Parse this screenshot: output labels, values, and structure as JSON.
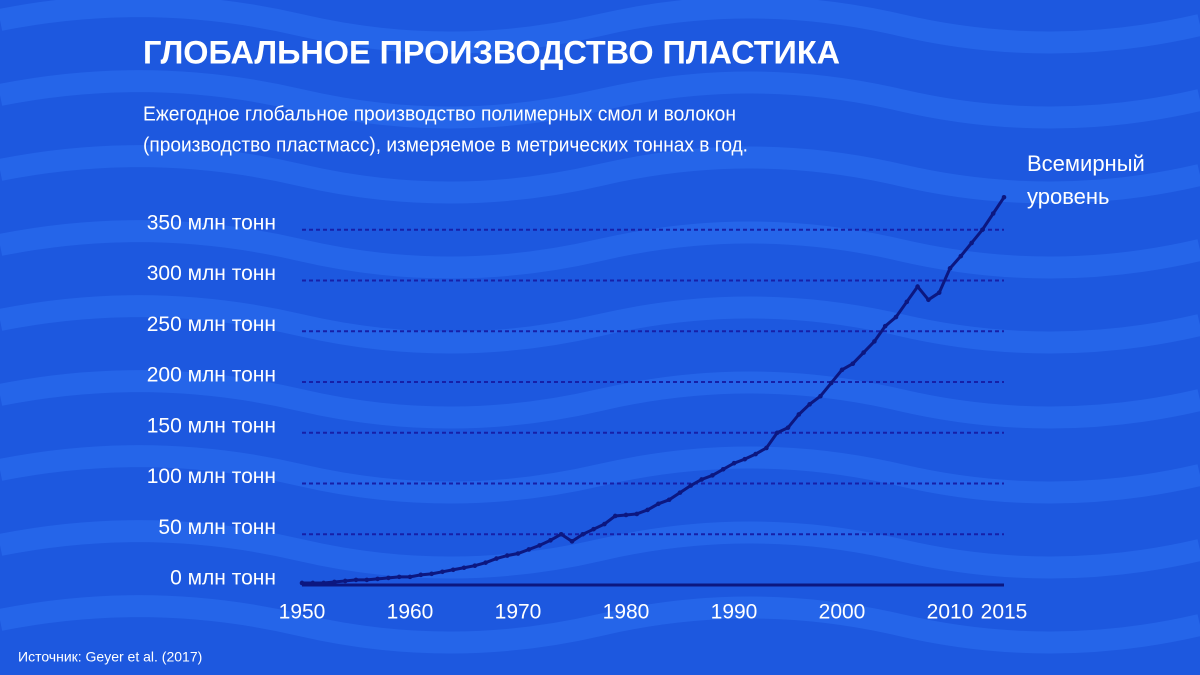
{
  "chart_data": {
    "type": "line",
    "title": "ГЛОБАЛЬНОЕ ПРОИЗВОДСТВО ПЛАСТИКА",
    "subtitle": [
      "Ежегодное глобальное производство полимерных смол и волокон",
      "(производство пластмасс), измеряемое в метрических тоннах в год."
    ],
    "annotation": [
      "Всемирный",
      "уровень"
    ],
    "source": "Источник: Geyer et al. (2017)",
    "x": [
      1950,
      1951,
      1952,
      1953,
      1954,
      1955,
      1956,
      1957,
      1958,
      1959,
      1960,
      1961,
      1962,
      1963,
      1964,
      1965,
      1966,
      1967,
      1968,
      1969,
      1970,
      1971,
      1972,
      1973,
      1974,
      1975,
      1976,
      1977,
      1978,
      1979,
      1980,
      1981,
      1982,
      1983,
      1984,
      1985,
      1986,
      1987,
      1988,
      1989,
      1990,
      1991,
      1992,
      1993,
      1994,
      1995,
      1996,
      1997,
      1998,
      1999,
      2000,
      2001,
      2002,
      2003,
      2004,
      2005,
      2006,
      2007,
      2008,
      2009,
      2010,
      2011,
      2012,
      2013,
      2014,
      2015
    ],
    "series": [
      {
        "name": "Всемирный уровень",
        "color": "#0c1780",
        "values": [
          2,
          2,
          2,
          3,
          4,
          5,
          5,
          6,
          7,
          8,
          8,
          10,
          11,
          13,
          15,
          17,
          19,
          22,
          26,
          29,
          31,
          35,
          39,
          44,
          50,
          43,
          50,
          55,
          60,
          68,
          69,
          70,
          74,
          80,
          84,
          91,
          98,
          104,
          108,
          114,
          120,
          124,
          129,
          135,
          150,
          155,
          168,
          178,
          186,
          199,
          212,
          218,
          229,
          240,
          255,
          264,
          279,
          294,
          281,
          288,
          312,
          324,
          337,
          350,
          366,
          382
        ]
      }
    ],
    "xlim": [
      1950,
      2015
    ],
    "xticks": [
      1950,
      1960,
      1970,
      1980,
      1990,
      2000,
      2010,
      2015
    ],
    "ylim": [
      0,
      400
    ],
    "yticks": [
      {
        "value": 0,
        "label": "0 млн тонн"
      },
      {
        "value": 50,
        "label": "50 млн тонн"
      },
      {
        "value": 100,
        "label": "100 млн тонн"
      },
      {
        "value": 150,
        "label": "150 млн тонн"
      },
      {
        "value": 200,
        "label": "200 млн тонн"
      },
      {
        "value": 250,
        "label": "250 млн тонн"
      },
      {
        "value": 300,
        "label": "300 млн тонн"
      },
      {
        "value": 350,
        "label": "350 млн тонн"
      }
    ],
    "grid": true
  }
}
